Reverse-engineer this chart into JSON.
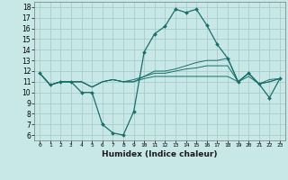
{
  "xlabel": "Humidex (Indice chaleur)",
  "background_color": "#c8e8e8",
  "grid_color": "#a8cccc",
  "line_color": "#1a6e6a",
  "xlim": [
    -0.5,
    23.5
  ],
  "ylim": [
    5.5,
    18.5
  ],
  "xticks": [
    0,
    1,
    2,
    3,
    4,
    5,
    6,
    7,
    8,
    9,
    10,
    11,
    12,
    13,
    14,
    15,
    16,
    17,
    18,
    19,
    20,
    21,
    22,
    23
  ],
  "yticks": [
    6,
    7,
    8,
    9,
    10,
    11,
    12,
    13,
    14,
    15,
    16,
    17,
    18
  ],
  "series": [
    [
      11.8,
      10.7,
      11.0,
      11.0,
      10.0,
      10.0,
      7.0,
      6.2,
      6.0,
      8.2,
      13.8,
      15.5,
      16.2,
      17.8,
      17.5,
      17.8,
      16.3,
      14.5,
      13.2,
      11.0,
      11.8,
      10.8,
      9.5,
      11.3
    ],
    [
      11.8,
      10.7,
      11.0,
      11.0,
      11.0,
      10.5,
      11.0,
      11.2,
      11.0,
      11.2,
      11.5,
      12.0,
      12.0,
      12.2,
      12.5,
      12.8,
      13.0,
      13.0,
      13.2,
      11.0,
      11.8,
      10.8,
      11.2,
      11.3
    ],
    [
      11.8,
      10.7,
      11.0,
      11.0,
      11.0,
      10.5,
      11.0,
      11.2,
      11.0,
      11.0,
      11.5,
      11.8,
      11.8,
      12.0,
      12.2,
      12.3,
      12.5,
      12.5,
      12.5,
      11.0,
      11.8,
      10.8,
      11.0,
      11.3
    ],
    [
      11.8,
      10.7,
      11.0,
      11.0,
      11.0,
      10.5,
      11.0,
      11.2,
      11.0,
      11.0,
      11.3,
      11.5,
      11.5,
      11.5,
      11.5,
      11.5,
      11.5,
      11.5,
      11.5,
      11.0,
      11.5,
      10.8,
      11.0,
      11.3
    ]
  ]
}
